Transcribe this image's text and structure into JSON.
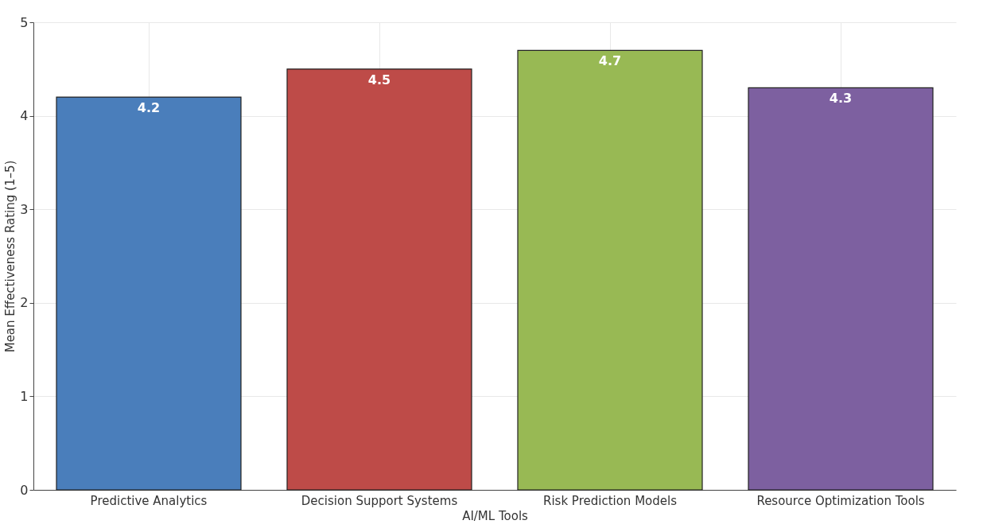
{
  "chart_data": {
    "type": "bar",
    "xlabel": "AI/ML Tools",
    "ylabel": "Mean Effectiveness Rating (1–5)",
    "categories": [
      "Predictive Analytics",
      "Decision Support Systems",
      "Risk Prediction Models",
      "Resource Optimization Tools"
    ],
    "values": [
      4.2,
      4.5,
      4.7,
      4.3
    ],
    "colors": [
      "#4a7ebb",
      "#be4b48",
      "#98b954",
      "#7d60a0"
    ],
    "ylim": [
      0,
      5
    ],
    "yticks": [
      0,
      1,
      2,
      3,
      4,
      5
    ],
    "grid": true,
    "data_labels": true
  }
}
